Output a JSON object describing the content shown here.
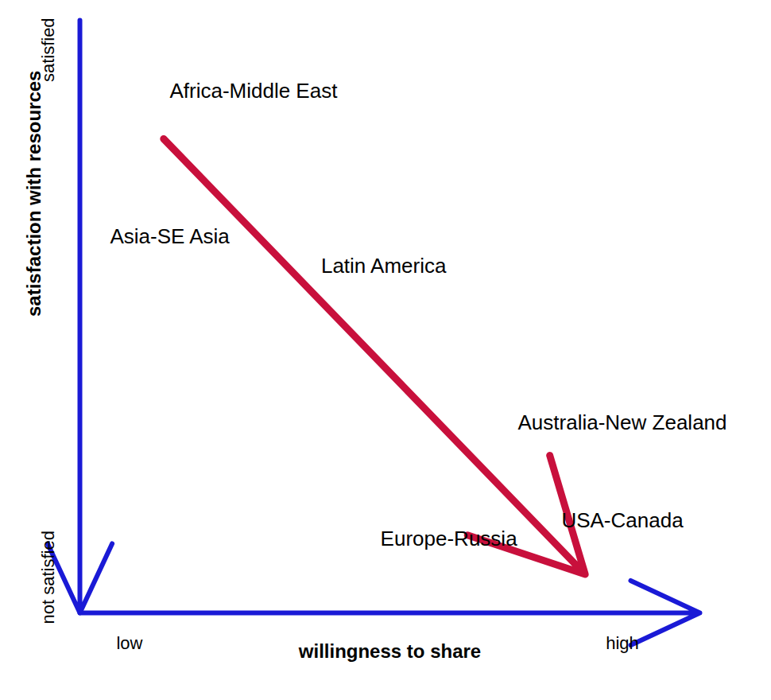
{
  "chart_data": {
    "type": "scatter",
    "marker": "none",
    "xlabel": "willingness to share",
    "ylabel": "satisfaction with resources",
    "xlim": [
      0,
      10
    ],
    "ylim": [
      0,
      10
    ],
    "xticks": [
      {
        "value": 0.8,
        "label": "low"
      },
      {
        "value": 8.75,
        "label": "high"
      }
    ],
    "yticks": [
      {
        "value": 0.6,
        "label": "not satisfied"
      },
      {
        "value": 9.5,
        "label": "satisfied"
      }
    ],
    "labels": [
      "Africa-Middle East",
      "Asia-SE Asia",
      "Latin America",
      "Australia-New Zealand",
      "USA-Canada",
      "Europe-Russia"
    ],
    "x": [
      2.8,
      1.45,
      4.9,
      8.75,
      8.75,
      5.95
    ],
    "y": [
      8.8,
      6.35,
      5.85,
      3.2,
      1.55,
      1.25
    ],
    "trend": {
      "x": [
        1.35,
        8.15
      ],
      "y": [
        8.0,
        0.65
      ],
      "color": "#c8103c"
    }
  }
}
